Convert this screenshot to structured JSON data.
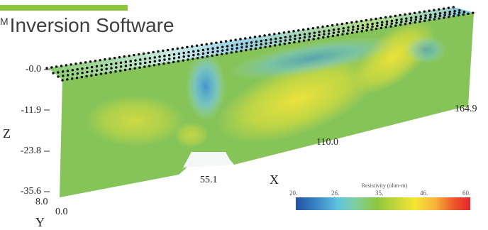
{
  "header": {
    "title_prefix": "M",
    "title": "Inversion Software",
    "accent_color": "#8cc63f"
  },
  "model": {
    "axes": {
      "x_label": "X",
      "y_label": "Y",
      "z_label": "Z"
    },
    "z_ticks": [
      "-0.0",
      "-11.9",
      "-23.8",
      "-35.6"
    ],
    "x_ticks": [
      "55.1",
      "110.0",
      "164.9"
    ],
    "y_ticks": [
      "8.0",
      "0.0"
    ]
  },
  "legend": {
    "title": "Resistivity (ohm-m)",
    "ticks": [
      "20.",
      "26.",
      "35.",
      "46.",
      "60."
    ],
    "colors": [
      "#2452a3",
      "#3a86c6",
      "#5ec3de",
      "#8cc63f",
      "#f4e635",
      "#e5272c"
    ]
  }
}
